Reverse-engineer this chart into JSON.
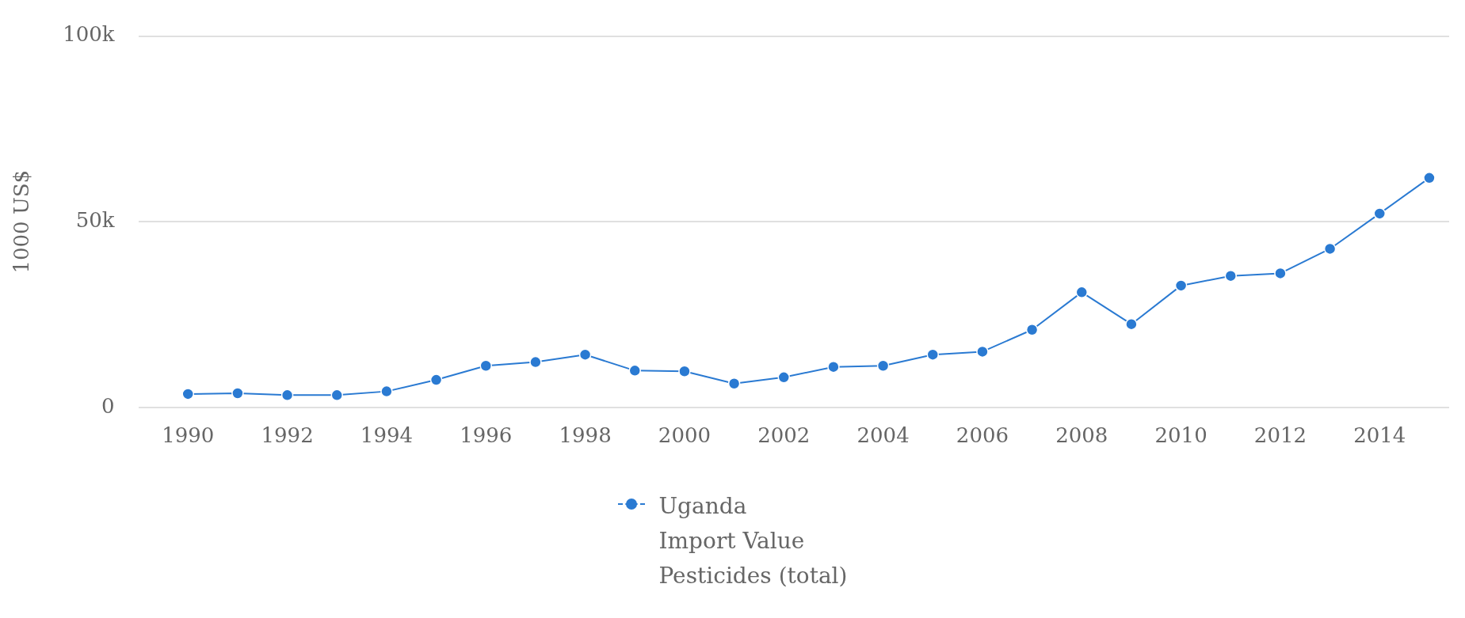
{
  "chart_data": {
    "type": "line",
    "ylabel": "1000 US$",
    "x": [
      1990,
      1991,
      1992,
      1993,
      1994,
      1995,
      1996,
      1997,
      1998,
      1999,
      2000,
      2001,
      2002,
      2003,
      2004,
      2005,
      2006,
      2007,
      2008,
      2009,
      2010,
      2011,
      2012,
      2013,
      2014,
      2015
    ],
    "series": [
      {
        "name": "Uganda\nImport Value\nPesticides (total)",
        "color": "#2a7ad2",
        "values": [
          3600,
          3800,
          3300,
          3300,
          4300,
          7400,
          11200,
          12200,
          14200,
          9900,
          9700,
          6400,
          8100,
          10900,
          11200,
          14200,
          15000,
          20900,
          31000,
          22400,
          32800,
          35400,
          36100,
          42700,
          52200,
          61800
        ]
      }
    ],
    "xlim": [
      1989,
      2015.4
    ],
    "xticks": [
      1990,
      1992,
      1994,
      1996,
      1998,
      2000,
      2002,
      2004,
      2006,
      2008,
      2010,
      2012,
      2014
    ],
    "ylim": [
      0,
      100000
    ],
    "yticks": [
      {
        "value": 0,
        "label": "0"
      },
      {
        "value": 50000,
        "label": "50k"
      },
      {
        "value": 100000,
        "label": "100k"
      }
    ],
    "grid": "y",
    "legend": "bottom",
    "marker": "circle",
    "line_style": "solid"
  }
}
